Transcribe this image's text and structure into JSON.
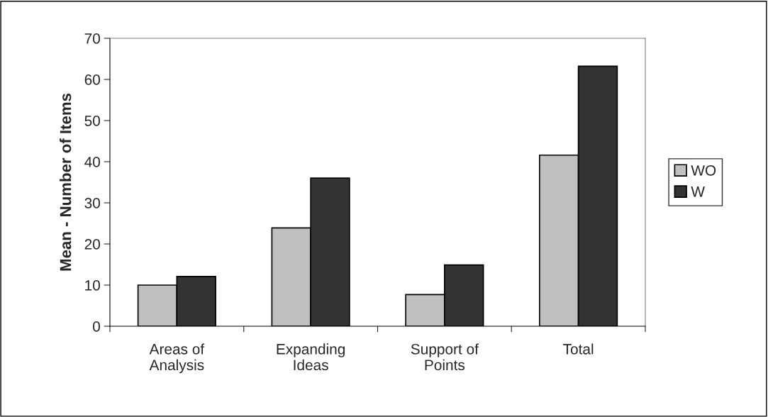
{
  "chart_data": {
    "type": "bar",
    "ylabel": "Mean - Number of Items",
    "categories": [
      "Areas of\nAnalysis",
      "Expanding\nIdeas",
      "Support of\nPoints",
      "Total"
    ],
    "series": [
      {
        "name": "WO",
        "color": "#c0c0c0",
        "values": [
          10.0,
          23.9,
          7.7,
          41.6
        ]
      },
      {
        "name": "W",
        "color": "#333333",
        "values": [
          12.1,
          36.0,
          14.9,
          63.2
        ]
      }
    ],
    "ylim": [
      0,
      70
    ],
    "yticks": [
      0,
      10,
      20,
      30,
      40,
      50,
      60,
      70
    ],
    "grid": false,
    "legend": "right"
  }
}
